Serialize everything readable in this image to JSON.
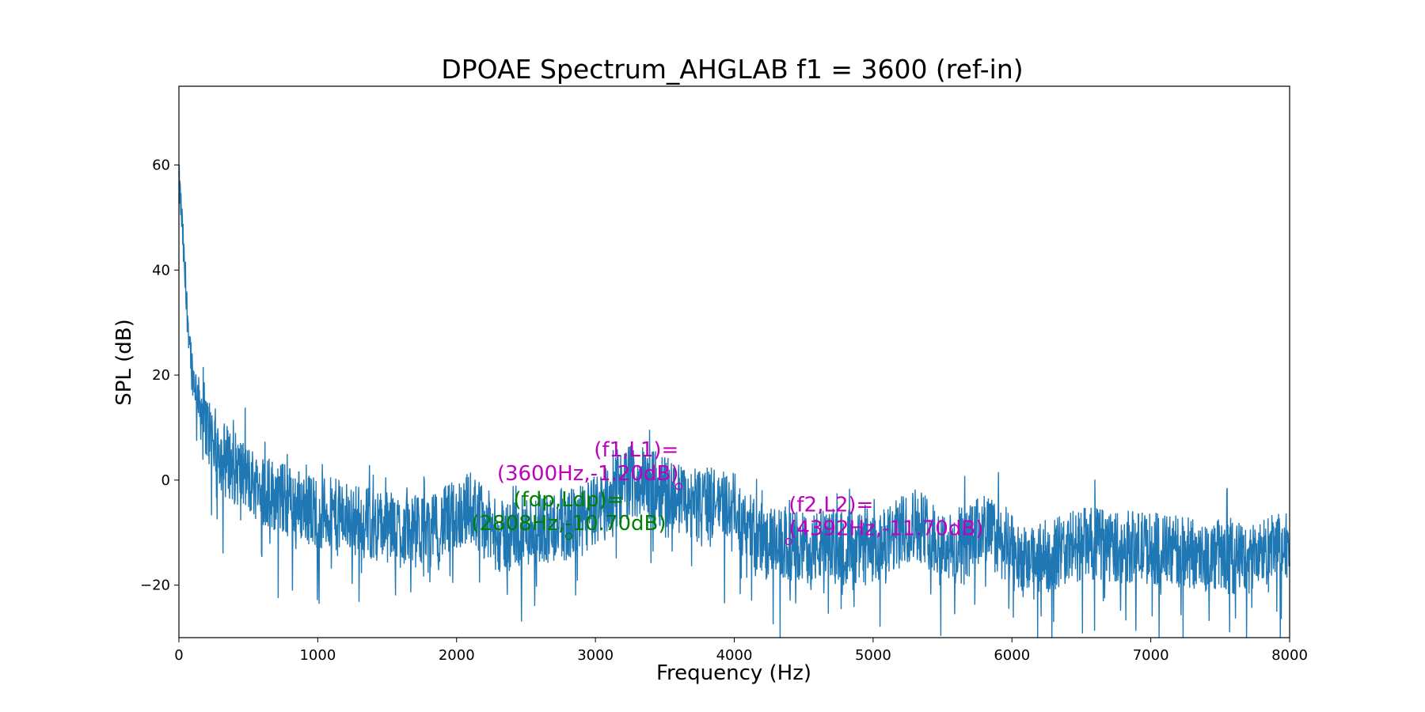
{
  "chart_data": {
    "type": "line",
    "title": "DPOAE Spectrum_AHGLAB f1 = 3600 (ref-in)",
    "xlabel": "Frequency (Hz)",
    "ylabel": "SPL (dB)",
    "xlim": [
      0,
      8000
    ],
    "ylim": [
      -30,
      75
    ],
    "xticks": [
      0,
      1000,
      2000,
      3000,
      4000,
      5000,
      6000,
      7000,
      8000
    ],
    "yticks": [
      -20,
      0,
      20,
      40,
      60
    ],
    "grid": false,
    "line_color": "#1f77b4",
    "spectrum_envelope": [
      {
        "x": 0,
        "y": 57
      },
      {
        "x": 20,
        "y": 50
      },
      {
        "x": 50,
        "y": 35
      },
      {
        "x": 100,
        "y": 20
      },
      {
        "x": 200,
        "y": 10
      },
      {
        "x": 300,
        "y": 5
      },
      {
        "x": 500,
        "y": 0
      },
      {
        "x": 700,
        "y": -3
      },
      {
        "x": 1000,
        "y": -6
      },
      {
        "x": 1200,
        "y": -7
      },
      {
        "x": 1500,
        "y": -9
      },
      {
        "x": 1800,
        "y": -10
      },
      {
        "x": 2100,
        "y": -5
      },
      {
        "x": 2300,
        "y": -11
      },
      {
        "x": 2600,
        "y": -9
      },
      {
        "x": 2900,
        "y": -8
      },
      {
        "x": 3250,
        "y": 0
      },
      {
        "x": 3500,
        "y": -2
      },
      {
        "x": 3700,
        "y": -5
      },
      {
        "x": 3950,
        "y": -4
      },
      {
        "x": 4200,
        "y": -12
      },
      {
        "x": 4500,
        "y": -13
      },
      {
        "x": 4800,
        "y": -12
      },
      {
        "x": 5000,
        "y": -14
      },
      {
        "x": 5300,
        "y": -8
      },
      {
        "x": 5600,
        "y": -14
      },
      {
        "x": 5800,
        "y": -9
      },
      {
        "x": 6100,
        "y": -16
      },
      {
        "x": 6500,
        "y": -12
      },
      {
        "x": 7000,
        "y": -13
      },
      {
        "x": 7300,
        "y": -14
      },
      {
        "x": 7700,
        "y": -15
      },
      {
        "x": 8000,
        "y": -12
      }
    ],
    "markers": [
      {
        "id": "f1",
        "x": 3600,
        "y": -1.2,
        "color": "#bf00bf",
        "line1": "(f1,L1)=",
        "line2": "(3600Hz,-1.20dB)",
        "align": "end"
      },
      {
        "id": "fdp",
        "x": 2808,
        "y": -10.7,
        "color": "#008000",
        "line1": "(fdp,Ldp)=",
        "line2": "(2808Hz,-10.70dB)",
        "align": "middle"
      },
      {
        "id": "f2",
        "x": 4392,
        "y": -11.7,
        "color": "#bf00bf",
        "line1": "(f2,L2)=",
        "line2": "(4392Hz,-11.70dB)",
        "align": "start"
      }
    ]
  }
}
